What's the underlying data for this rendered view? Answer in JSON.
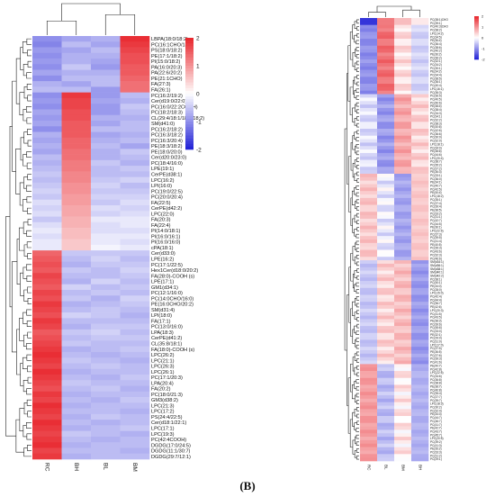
{
  "panel_label": "(B)",
  "palette": {
    "low": "#1f1fd6",
    "mid": "#ffffff",
    "high": "#e8232a",
    "branch": "#222222"
  },
  "chart_data": [
    {
      "type": "heatmap",
      "title": "",
      "columns": [
        "RC",
        "BH",
        "BL",
        "BM"
      ],
      "colorbar": {
        "min": -2,
        "max": 2,
        "ticks": [
          2,
          1,
          0,
          -1,
          -2
        ]
      },
      "rows": [
        "LBPA(18:0/18:2)",
        "PC(16:1CHO/18:0)",
        "PS(18:0/18:2)",
        "PE(17:1/18:2)",
        "PI(15:0/18:2)",
        "PA(16:0/20:3)",
        "PA(22:6/20:2)",
        "PE(21:1CHO)",
        "FA(27:3)",
        "FA(26:1)",
        "PC(16:2/19:2)",
        "Cer(d19:0/22:0)",
        "PC(16:0/22:2COOH)",
        "PC(18:2/18:3)",
        "CL(29:4/18:1/18:2/18:2)",
        "SM(d41:0)",
        "PC(16:2/18:2)",
        "PC(16:3/18:2)",
        "PC(16:3/20:4)",
        "PE(18:3/18:2)",
        "PE(18:0/20:0)",
        "Cer(d20:0/23:0)",
        "PC(18:4/16:0)",
        "LPE(19:1)",
        "CerPE(d38:1)",
        "LPC(16:2)",
        "LPI(16:0)",
        "PC(19:0/22:5)",
        "PC(20:0/20:4)",
        "FA(22:5)",
        "CerPE(d42:2)",
        "LPC(22:0)",
        "FA(20:3)",
        "FA(22:4)",
        "PI(14:0/18:1)",
        "PI(16:0/16:1)",
        "PI(16:0/16:0)",
        "cPA(18:1)",
        "Cer(d33:0)",
        "LPE(16:2)",
        "PC(17:1/22:5)",
        "Hex1Cer(d18:0/20:2)",
        "FA(28:0)-COOH (s)",
        "LPE(17:1)",
        "GM1(d34:1)",
        "PC(12:1/16:0)",
        "PC(14:0CHO/16:0)",
        "PE(16:0CHO/20:2)",
        "SM(d31:4)",
        "LPI(18:0)",
        "FA(17:1)",
        "PC(13:0/16:0)",
        "LPA(18:3)",
        "CerPE(d41:2)",
        "CL(35:8/18:1)",
        "FA(18:0)-COOH (s)",
        "LPC(26:2)",
        "LPC(21:1)",
        "LPC(26:3)",
        "LPC(26:1)",
        "PC(17:1/20:3)",
        "LPA(20:4)",
        "FA(20:2)",
        "PC(18:0/21:3)",
        "GM3(d38:2)",
        "LPC(21:3)",
        "LPC(17:2)",
        "PS(24:4/22:5)",
        "Cer(d18:1/22:1)",
        "LPC(17:1)",
        "LPC(19:3)",
        "PC(42:4COOH)",
        "DGDG(17:0/24:5)",
        "DGDG(11:1/30:7)",
        "DGDG(29:7/12:1)"
      ],
      "values": [
        [
          -1.0,
          -0.8,
          -0.7,
          1.9
        ],
        [
          -1.1,
          -0.6,
          -0.8,
          1.8
        ],
        [
          -0.9,
          -0.8,
          -0.6,
          1.7
        ],
        [
          -1.0,
          -0.7,
          -0.7,
          1.6
        ],
        [
          -0.9,
          -0.7,
          -0.8,
          1.6
        ],
        [
          -1.0,
          -0.5,
          -0.9,
          1.5
        ],
        [
          -0.8,
          -0.7,
          -0.7,
          1.5
        ],
        [
          -1.0,
          -0.6,
          -0.6,
          1.4
        ],
        [
          -0.7,
          -0.8,
          -0.6,
          1.3
        ],
        [
          -0.6,
          -0.6,
          -0.9,
          1.3
        ],
        [
          -1.0,
          1.8,
          -0.9,
          -0.6
        ],
        [
          -0.9,
          1.7,
          -0.8,
          -0.7
        ],
        [
          -1.0,
          1.7,
          -0.9,
          -0.5
        ],
        [
          -0.8,
          1.6,
          -0.9,
          -0.6
        ],
        [
          -0.9,
          1.6,
          -0.7,
          -0.7
        ],
        [
          -0.8,
          1.5,
          -0.8,
          -0.6
        ],
        [
          -1.0,
          1.5,
          -0.6,
          -0.6
        ],
        [
          -0.7,
          1.5,
          -0.8,
          -0.7
        ],
        [
          -0.8,
          1.4,
          -0.7,
          -0.6
        ],
        [
          -0.7,
          1.4,
          -0.6,
          -0.8
        ],
        [
          -0.8,
          1.3,
          -0.7,
          -0.5
        ],
        [
          -0.6,
          1.3,
          -0.7,
          -0.6
        ],
        [
          -0.7,
          1.2,
          -0.5,
          -0.7
        ],
        [
          -0.6,
          1.2,
          -0.6,
          -0.5
        ],
        [
          -0.5,
          1.1,
          -0.6,
          -0.6
        ],
        [
          -0.6,
          1.1,
          -0.5,
          -0.4
        ],
        [
          -0.5,
          1.0,
          -0.4,
          -0.6
        ],
        [
          -0.4,
          1.0,
          -0.5,
          -0.5
        ],
        [
          -0.5,
          0.9,
          -0.4,
          -0.4
        ],
        [
          -0.3,
          0.9,
          -0.5,
          -0.3
        ],
        [
          -0.4,
          0.8,
          -0.3,
          -0.4
        ],
        [
          -0.3,
          0.8,
          -0.4,
          -0.3
        ],
        [
          -0.5,
          0.7,
          -0.2,
          -0.2
        ],
        [
          -0.3,
          0.7,
          -0.3,
          -0.2
        ],
        [
          -0.2,
          0.6,
          -0.3,
          -0.3
        ],
        [
          -0.3,
          0.6,
          -0.2,
          -0.2
        ],
        [
          -0.2,
          0.5,
          -0.2,
          -0.3
        ],
        [
          -0.2,
          0.5,
          -0.1,
          -0.2
        ],
        [
          1.4,
          -0.5,
          -0.5,
          -0.5
        ],
        [
          1.5,
          -0.6,
          -0.4,
          -0.6
        ],
        [
          1.6,
          -0.7,
          -0.5,
          -0.5
        ],
        [
          1.5,
          -0.5,
          -0.6,
          -0.4
        ],
        [
          1.7,
          -0.6,
          -0.6,
          -0.5
        ],
        [
          1.6,
          -0.7,
          -0.4,
          -0.6
        ],
        [
          1.5,
          -0.4,
          -0.6,
          -0.5
        ],
        [
          1.7,
          -0.6,
          -0.5,
          -0.6
        ],
        [
          1.6,
          -0.5,
          -0.7,
          -0.4
        ],
        [
          1.8,
          -0.7,
          -0.6,
          -0.5
        ],
        [
          1.7,
          -0.6,
          -0.5,
          -0.6
        ],
        [
          1.6,
          -0.4,
          -0.5,
          -0.7
        ],
        [
          1.8,
          -0.6,
          -0.6,
          -0.6
        ],
        [
          1.7,
          -0.7,
          -0.5,
          -0.5
        ],
        [
          1.5,
          -0.5,
          -0.4,
          -0.6
        ],
        [
          1.6,
          -0.6,
          -0.5,
          -0.5
        ],
        [
          1.7,
          -0.5,
          -0.6,
          -0.6
        ],
        [
          1.8,
          -0.7,
          -0.6,
          -0.5
        ],
        [
          1.9,
          -0.6,
          -0.7,
          -0.6
        ],
        [
          1.8,
          -0.5,
          -0.6,
          -0.7
        ],
        [
          1.7,
          -0.6,
          -0.5,
          -0.6
        ],
        [
          1.9,
          -0.7,
          -0.6,
          -0.6
        ],
        [
          1.8,
          -0.6,
          -0.7,
          -0.5
        ],
        [
          1.7,
          -0.5,
          -0.6,
          -0.6
        ],
        [
          1.6,
          -0.6,
          -0.5,
          -0.7
        ],
        [
          1.8,
          -0.7,
          -0.6,
          -0.6
        ],
        [
          1.7,
          -0.6,
          -0.7,
          -0.5
        ],
        [
          1.9,
          -0.7,
          -0.6,
          -0.6
        ],
        [
          1.8,
          -0.6,
          -0.6,
          -0.7
        ],
        [
          1.7,
          -0.7,
          -0.5,
          -0.6
        ],
        [
          1.9,
          -0.6,
          -0.7,
          -0.6
        ],
        [
          1.8,
          -0.7,
          -0.6,
          -0.5
        ],
        [
          1.7,
          -0.5,
          -0.6,
          -0.7
        ],
        [
          1.8,
          -0.6,
          -0.7,
          -0.6
        ],
        [
          1.9,
          -0.7,
          -0.6,
          -0.6
        ],
        [
          1.7,
          -0.6,
          -0.6,
          -0.7
        ],
        [
          1.8,
          -0.7,
          -0.6,
          -0.6
        ]
      ]
    },
    {
      "type": "heatmap",
      "title": "",
      "columns": [
        "RC",
        "BL",
        "BM",
        "BH"
      ],
      "colorbar": {
        "min": -2,
        "max": 2,
        "ticks": [
          2,
          1,
          0,
          -1,
          -2
        ]
      },
      "rows": [
        "PC(38:1)CHO",
        "PC(39:1)",
        "PC(40:3)CHO",
        "PC(38:2)",
        "LPC(14:2)",
        "PC(34:5)",
        "PE(36:4)",
        "PC(36:4)",
        "PC(38:6)",
        "PC(40:2)",
        "PE(36:2)",
        "PC(36:2)",
        "PC(32:1)",
        "PC(34:2)",
        "PC(30:1)",
        "PE(34:2)",
        "PC(34:4)",
        "PC(38:5)",
        "PC(36:1)",
        "PC(40:4)",
        "LPC(16:1)",
        "PC(36:3)",
        "PC(36:5)",
        "PC(40:5)",
        "PC(40:6)",
        "PE(38:4)",
        "PC(38:4)",
        "PC(34:3)",
        "PC(34:1)",
        "PC(32:2)",
        "PC(38:3)",
        "PE(40:6)",
        "PC(42:6)",
        "PC(36:6)",
        "PC(30:0)",
        "PC(32:0)",
        "LPC(18:1)",
        "PC(34:0)",
        "PE(38:6)",
        "PC(44:6)",
        "LPC(20:4)",
        "PC(38:7)",
        "PC(35:2)",
        "PC(37:2)",
        "PE(36:3)",
        "PC(33:1)",
        "PC(36:0)",
        "PE(34:1)",
        "PC(40:7)",
        "PC(42:5)",
        "PE(40:4)",
        "LPC(18:2)",
        "PC(35:1)",
        "PC(37:4)",
        "PC(39:4)",
        "PE(38:5)",
        "PC(33:2)",
        "PC(31:1)",
        "PC(42:7)",
        "PC(44:5)",
        "PE(36:1)",
        "LPC(22:6)",
        "PC(37:3)",
        "PC(39:5)",
        "PC(41:4)",
        "PE(40:5)",
        "PC(35:3)",
        "PC(43:6)",
        "PC(32:3)",
        "PC(46:6)",
        "SM(d34:1)",
        "SM(d36:1)",
        "SM(d38:1)",
        "SM(d40:1)",
        "SM(d42:2)",
        "PC(38:1)",
        "PC(40:1)",
        "PE(34:0)",
        "PC(28:0)",
        "LPC(15:0)",
        "PC(42:4)",
        "PC(44:4)",
        "PC(36:7)",
        "PE(42:6)",
        "LPC(20:3)",
        "PC(41:5)",
        "PC(43:5)",
        "PE(38:3)",
        "PC(39:6)",
        "PC(45:6)",
        "PC(33:0)",
        "PE(32:1)",
        "PC(29:0)",
        "PC(31:0)",
        "LPC(17:0)",
        "PC(37:5)",
        "PE(36:5)",
        "PC(37:6)",
        "PC(39:3)",
        "PC(41:6)",
        "PE(40:7)",
        "PC(42:8)",
        "LPC(22:5)",
        "PC(34:6)",
        "PC(36:8)",
        "PC(38:8)",
        "PE(38:7)",
        "PC(40:8)",
        "PC(35:4)",
        "PC(37:7)",
        "PC(39:7)",
        "LPC(18:3)",
        "PC(30:2)",
        "PC(32:4)",
        "PE(34:3)",
        "PC(44:7)",
        "PC(46:7)",
        "PC(41:7)",
        "PE(42:7)",
        "PC(43:7)",
        "PC(45:7)",
        "LPC(20:5)",
        "PC(39:2)",
        "PC(41:3)",
        "PE(35:2)",
        "PC(33:3)",
        "PC(31:2)",
        "PC(29:1)"
      ],
      "values": []
    }
  ]
}
